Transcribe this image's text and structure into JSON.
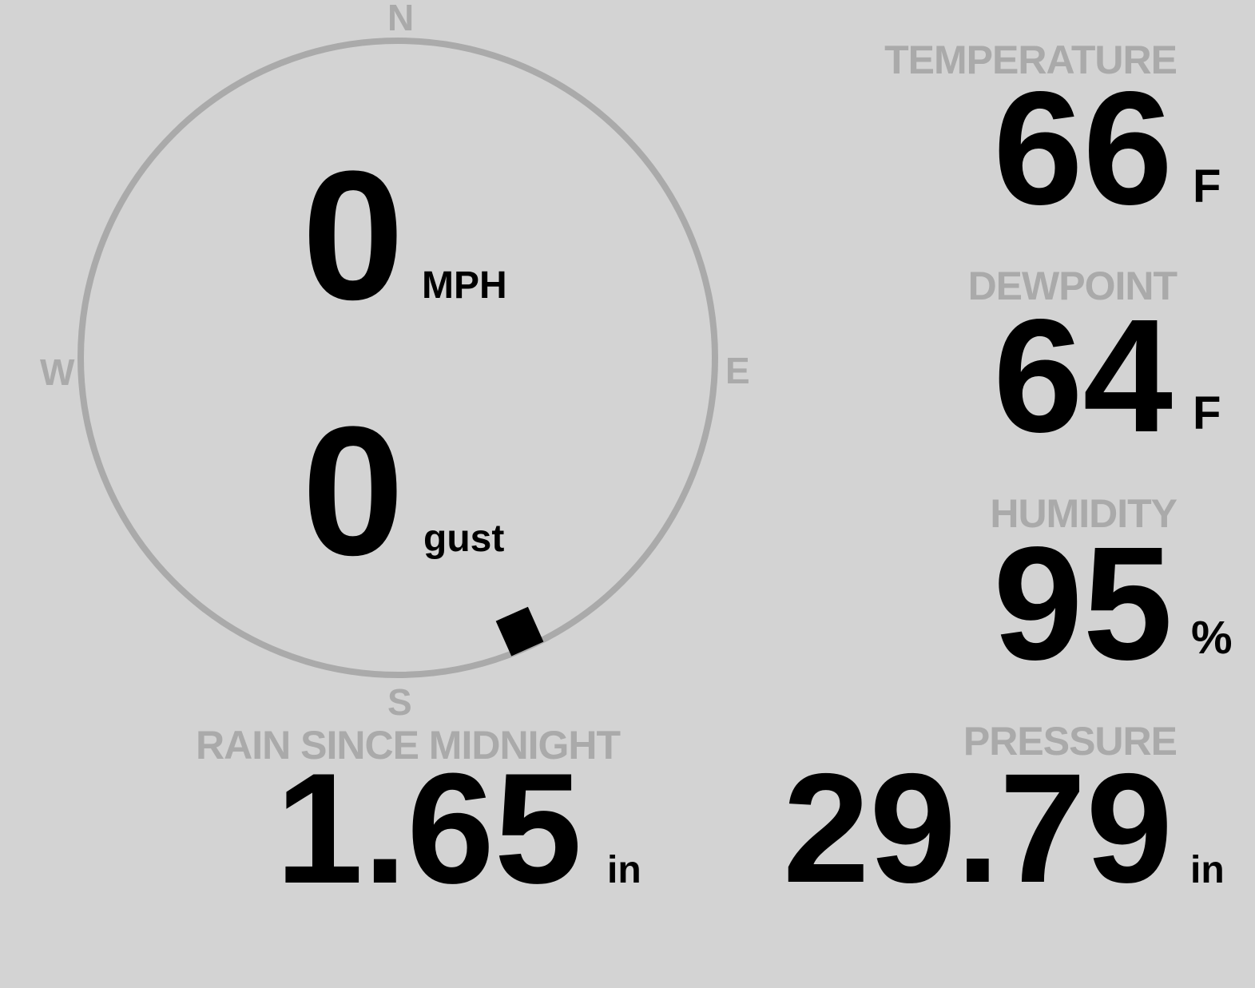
{
  "wind": {
    "speed": "0",
    "speed_unit": "MPH",
    "gust": "0",
    "gust_label": "gust",
    "direction_degrees": 156,
    "compass": {
      "n": "N",
      "e": "E",
      "s": "S",
      "w": "W"
    }
  },
  "temperature": {
    "label": "TEMPERATURE",
    "value": "66",
    "unit": "F"
  },
  "dewpoint": {
    "label": "DEWPOINT",
    "value": "64",
    "unit": "F"
  },
  "humidity": {
    "label": "HUMIDITY",
    "value": "95",
    "unit": "%"
  },
  "pressure": {
    "label": "PRESSURE",
    "value": "29.79",
    "unit": "in"
  },
  "rain": {
    "label": "RAIN SINCE MIDNIGHT",
    "value": "1.65",
    "unit": "in"
  },
  "colors": {
    "background": "#d3d3d3",
    "label": "#aaaaaa",
    "value": "#000000",
    "dial": "#aaaaaa"
  }
}
